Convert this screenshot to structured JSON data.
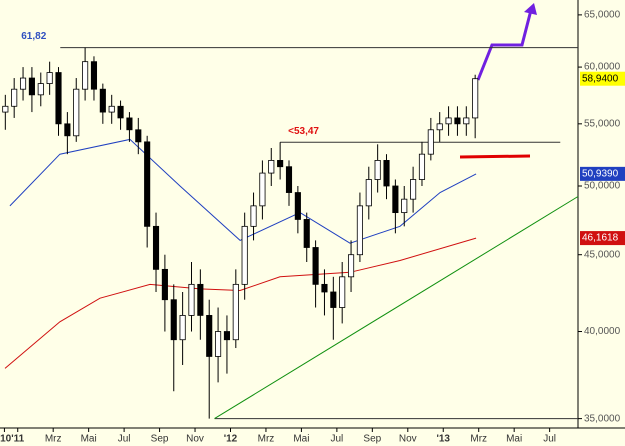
{
  "chart_data": {
    "type": "candlestick",
    "log_y": true,
    "background": "#ffffe8",
    "up_color": "#ffffff",
    "down_color": "#000000",
    "x": [
      -0.7,
      -0.2,
      0.3,
      0.8,
      1.3,
      1.8,
      2.3,
      2.8,
      3.3,
      3.8,
      4.3,
      4.8,
      5.3,
      5.8,
      6.3,
      6.8,
      7.3,
      7.8,
      8.3,
      8.8,
      9.3,
      9.8,
      10.3,
      10.8,
      11.3,
      11.8,
      12.3,
      12.8,
      13.3,
      13.8,
      14.3,
      14.8,
      15.3,
      15.8,
      16.3,
      16.8,
      17.3,
      17.8,
      18.3,
      18.8,
      19.3,
      19.8,
      20.3,
      20.8,
      21.3,
      21.8,
      22.3,
      22.8,
      23.3,
      23.8,
      24.3,
      24.8,
      25.3,
      25.8
    ],
    "open": [
      56,
      56.5,
      58,
      59,
      57.5,
      58.5,
      59.5,
      55,
      54,
      58,
      60.5,
      58,
      56,
      56.5,
      55.5,
      54.5,
      53.5,
      47,
      44,
      42,
      39.5,
      41,
      43,
      41,
      38.5,
      40,
      39.5,
      43,
      47,
      48.5,
      51,
      52,
      51.5,
      49.5,
      47.5,
      45.5,
      43,
      42.5,
      41.5,
      43.5,
      45,
      48.5,
      50.5,
      52,
      50,
      48,
      49,
      50.5,
      52.5,
      54.5,
      55,
      55.5,
      55,
      55.5
    ],
    "high": [
      57.5,
      59,
      60,
      60,
      59.5,
      60.5,
      60,
      56,
      59,
      61.82,
      61,
      58.5,
      57.5,
      57,
      56,
      55.5,
      54,
      48,
      45,
      43,
      42.5,
      44.5,
      44,
      42,
      41.5,
      41,
      44,
      48,
      49.5,
      52,
      53,
      53.47,
      52,
      50,
      48,
      46,
      44,
      43.5,
      44.5,
      46,
      49.5,
      51.5,
      53.3,
      52.5,
      50.5,
      50,
      51.5,
      53.5,
      55.5,
      56,
      56.5,
      56.5,
      56.5,
      59.3
    ],
    "low": [
      54.5,
      55.5,
      57,
      56,
      56.5,
      57.5,
      54,
      52.5,
      53.5,
      57,
      57,
      55,
      55,
      54.5,
      53.5,
      52.5,
      45.5,
      42.5,
      40,
      36.5,
      38,
      40,
      39.5,
      35,
      37,
      37.5,
      39,
      42,
      46,
      47.5,
      50,
      50.5,
      48.5,
      46.5,
      44.5,
      41.5,
      41,
      39.5,
      40.5,
      42.5,
      44.5,
      47.5,
      49.5,
      49,
      46.5,
      47,
      48,
      50,
      52,
      53.5,
      54,
      54,
      54,
      53.8
    ],
    "close": [
      56.5,
      58,
      59,
      57.5,
      58.5,
      59.5,
      55,
      54,
      58,
      60.5,
      58,
      56,
      56.5,
      55.5,
      54.5,
      53.5,
      47,
      44,
      42,
      39.5,
      41,
      43,
      41,
      38.5,
      40,
      39.5,
      43,
      47,
      48.5,
      51,
      52,
      51.5,
      49.5,
      47.5,
      45.5,
      43,
      42.5,
      41.5,
      43.5,
      45,
      48.5,
      50.5,
      52,
      50,
      48,
      49,
      50.5,
      52.5,
      54.5,
      55,
      55.5,
      55,
      55.5,
      58.94
    ],
    "close_label": "58,9400",
    "close_label_color": "#ffff00",
    "series": [
      {
        "color": "#2040c0",
        "x": [
          -0.44,
          2.38,
          6.33,
          9.15,
          12.54,
          15.92,
          18.74,
          21.56,
          23.82,
          25.85
        ],
        "values": [
          48.5,
          52.5,
          53.7,
          50,
          46,
          48,
          45.8,
          47,
          49.5,
          50.939
        ],
        "end_label": "50,9390"
      },
      {
        "color": "#d01010",
        "x": [
          -0.72,
          2.38,
          4.64,
          7.46,
          10.28,
          12.54,
          14.79,
          18.74,
          21.56,
          25.85
        ],
        "values": [
          37.8,
          40.6,
          42.1,
          43,
          42.7,
          42.6,
          43.5,
          43.8,
          44.6,
          46.1618
        ],
        "end_label": "46,1618"
      },
      {
        "color": "#109010",
        "x": [
          11.1,
          31.6
        ],
        "values": [
          35,
          49.2
        ]
      }
    ],
    "levels": [
      {
        "value": 61.82,
        "label": "61,82",
        "label_color": "#3050c0",
        "x": [
          2.4,
          31.6
        ]
      },
      {
        "value": 53.47,
        "label": "<53,47",
        "label_color": "#e01010",
        "x": [
          14.8,
          30.6
        ]
      },
      {
        "value": 35,
        "x": [
          11.1,
          31.6
        ]
      }
    ],
    "xlim": [
      -1,
      31.6
    ],
    "xticks": [
      {
        "value": -0.75,
        "label": "'10"
      },
      {
        "value": 0,
        "label": "'11"
      },
      {
        "value": 2,
        "label": "Mrz"
      },
      {
        "value": 4,
        "label": "Mai"
      },
      {
        "value": 6,
        "label": "Jul"
      },
      {
        "value": 8,
        "label": "Sep"
      },
      {
        "value": 10,
        "label": "Nov"
      },
      {
        "value": 12,
        "label": "'12"
      },
      {
        "value": 14,
        "label": "Mrz"
      },
      {
        "value": 16,
        "label": "Mai"
      },
      {
        "value": 18,
        "label": "Jul"
      },
      {
        "value": 20,
        "label": "Sep"
      },
      {
        "value": 22,
        "label": "Nov"
      },
      {
        "value": 24,
        "label": "'13"
      },
      {
        "value": 26,
        "label": "Mrz"
      },
      {
        "value": 28,
        "label": "Mai"
      },
      {
        "value": 30,
        "label": "Jul"
      }
    ],
    "ylim": [
      34.5,
      66.5
    ],
    "yticks": [
      {
        "value": 35,
        "label": "35,0000"
      },
      {
        "value": 40,
        "label": "40,0000"
      },
      {
        "value": 45,
        "label": "45,0000"
      },
      {
        "value": 50,
        "label": "50,0000"
      },
      {
        "value": 55,
        "label": "55,0000"
      },
      {
        "value": 60,
        "label": "60,0000"
      },
      {
        "value": 65,
        "label": "65,0000"
      }
    ]
  }
}
